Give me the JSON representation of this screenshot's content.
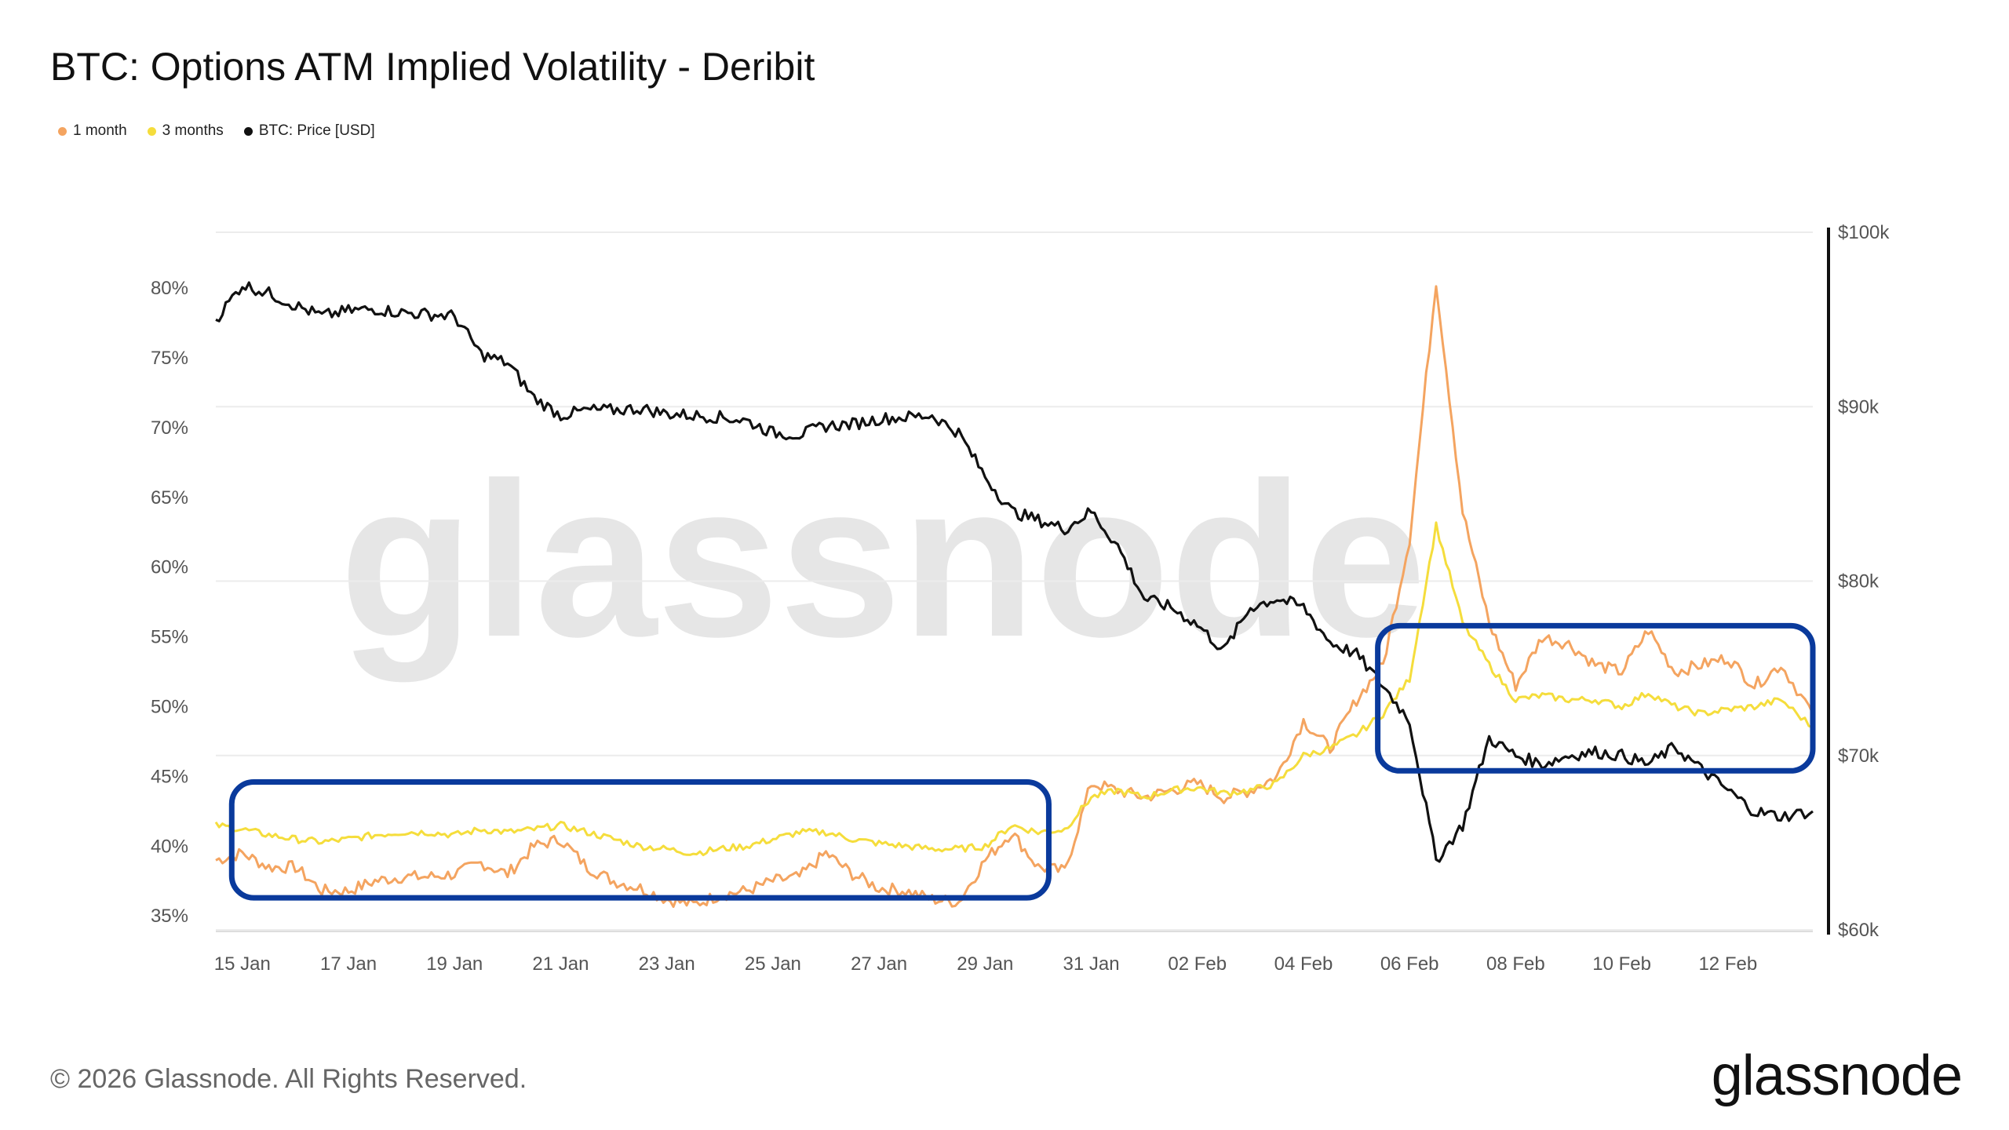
{
  "header": {
    "title": "BTC: Options ATM Implied Volatility - Deribit"
  },
  "legend": [
    {
      "label": "1 month",
      "color": "#f4a460"
    },
    {
      "label": "3 months",
      "color": "#f5dd3c"
    },
    {
      "label": "BTC: Price [USD]",
      "color": "#111111"
    }
  ],
  "watermark": "glassnode",
  "footer": {
    "copyright": "© 2026 Glassnode. All Rights Reserved.",
    "logo": "glassnode"
  },
  "colors": {
    "one_month": "#f4a460",
    "three_months": "#f5dd3c",
    "price": "#111111",
    "highlight_box": "#0a3a9c"
  },
  "chart_data": {
    "type": "line",
    "x_ticks": [
      "15 Jan",
      "17 Jan",
      "19 Jan",
      "21 Jan",
      "23 Jan",
      "25 Jan",
      "27 Jan",
      "29 Jan",
      "31 Jan",
      "02 Feb",
      "04 Feb",
      "06 Feb",
      "08 Feb",
      "10 Feb",
      "12 Feb"
    ],
    "x_range_days": [
      14.5,
      44.6
    ],
    "y_left_ticks": [
      "35%",
      "40%",
      "45%",
      "50%",
      "55%",
      "60%",
      "65%",
      "70%",
      "75%",
      "80%"
    ],
    "y_left_range": [
      34,
      84
    ],
    "y_right_ticks": [
      "$60k",
      "$70k",
      "$80k",
      "$90k",
      "$100k"
    ],
    "y_right_range": [
      60000,
      100000
    ],
    "series": [
      {
        "name": "1 month",
        "axis": "left",
        "x": [
          14.5,
          15.0,
          15.5,
          16.0,
          16.5,
          17.0,
          17.5,
          18.0,
          18.5,
          19.0,
          19.5,
          20.0,
          20.5,
          21.0,
          21.5,
          22.0,
          22.5,
          23.0,
          23.5,
          24.0,
          24.5,
          25.0,
          25.5,
          26.0,
          26.5,
          27.0,
          27.5,
          28.0,
          28.5,
          29.0,
          29.5,
          30.0,
          30.5,
          31.0,
          31.5,
          32.0,
          32.5,
          33.0,
          33.5,
          34.0,
          34.5,
          35.0,
          35.5,
          36.0,
          36.5,
          37.0,
          37.5,
          38.0,
          38.5,
          39.0,
          39.5,
          40.0,
          40.5,
          41.0,
          41.5,
          42.0,
          42.5,
          43.0,
          43.5,
          44.0,
          44.6
        ],
        "y": [
          39.0,
          39.5,
          38.5,
          38.5,
          36.8,
          36.8,
          37.5,
          37.8,
          37.8,
          38.0,
          38.8,
          38.0,
          40.0,
          40.5,
          38.5,
          37.5,
          37.0,
          36.2,
          35.8,
          36.5,
          36.8,
          37.5,
          37.8,
          39.5,
          38.0,
          37.0,
          36.8,
          36.2,
          36.0,
          39.0,
          41.0,
          38.5,
          38.2,
          44.5,
          44.0,
          43.5,
          44.0,
          44.5,
          43.5,
          44.0,
          45.0,
          49.0,
          47.0,
          50.5,
          53.0,
          62.0,
          80.5,
          64.0,
          56.0,
          51.5,
          55.0,
          54.5,
          53.0,
          52.5,
          55.5,
          52.5,
          53.0,
          53.5,
          51.5,
          53.0,
          49.5
        ]
      },
      {
        "name": "3 months",
        "axis": "left",
        "x": [
          14.5,
          15.0,
          15.5,
          16.0,
          16.5,
          17.0,
          17.5,
          18.0,
          18.5,
          19.0,
          19.5,
          20.0,
          20.5,
          21.0,
          21.5,
          22.0,
          22.5,
          23.0,
          23.5,
          24.0,
          24.5,
          25.0,
          25.5,
          26.0,
          26.5,
          27.0,
          27.5,
          28.0,
          28.5,
          29.0,
          29.5,
          30.0,
          30.5,
          31.0,
          31.5,
          32.0,
          32.5,
          33.0,
          33.5,
          34.0,
          34.5,
          35.0,
          35.5,
          36.0,
          36.5,
          37.0,
          37.5,
          38.0,
          38.5,
          39.0,
          39.5,
          40.0,
          40.5,
          41.0,
          41.5,
          42.0,
          42.5,
          43.0,
          43.5,
          44.0,
          44.6
        ],
        "y": [
          41.5,
          41.2,
          40.8,
          40.5,
          40.3,
          40.5,
          40.8,
          41.0,
          41.0,
          40.8,
          41.2,
          41.0,
          41.2,
          41.5,
          41.0,
          40.5,
          40.0,
          39.8,
          39.5,
          39.8,
          40.0,
          40.5,
          41.0,
          41.0,
          40.5,
          40.2,
          40.0,
          39.8,
          39.8,
          40.0,
          41.5,
          41.0,
          41.2,
          43.5,
          44.0,
          43.5,
          44.0,
          44.2,
          43.8,
          44.0,
          44.5,
          46.5,
          47.0,
          48.0,
          49.5,
          52.0,
          63.0,
          56.0,
          53.0,
          50.5,
          50.8,
          50.5,
          50.5,
          50.0,
          51.0,
          50.0,
          49.5,
          49.8,
          50.0,
          50.5,
          48.5
        ]
      },
      {
        "name": "BTC: Price [USD]",
        "axis": "right",
        "x": [
          14.5,
          15.0,
          15.5,
          16.0,
          16.5,
          17.0,
          17.5,
          18.0,
          18.5,
          19.0,
          19.5,
          20.0,
          20.5,
          21.0,
          21.5,
          22.0,
          22.5,
          23.0,
          23.5,
          24.0,
          24.5,
          25.0,
          25.5,
          26.0,
          26.5,
          27.0,
          27.5,
          28.0,
          28.5,
          29.0,
          29.5,
          30.0,
          30.5,
          31.0,
          31.5,
          32.0,
          32.5,
          33.0,
          33.5,
          34.0,
          34.5,
          35.0,
          35.5,
          36.0,
          36.5,
          37.0,
          37.5,
          38.0,
          38.5,
          39.0,
          39.5,
          40.0,
          40.5,
          41.0,
          41.5,
          42.0,
          42.5,
          43.0,
          43.5,
          44.0,
          44.6
        ],
        "y": [
          95000,
          97000,
          96500,
          95800,
          95200,
          95500,
          95600,
          95400,
          95300,
          95200,
          93000,
          92500,
          90500,
          89500,
          89800,
          89800,
          89900,
          89600,
          89500,
          89400,
          89200,
          88500,
          88400,
          88900,
          89000,
          89300,
          89400,
          89500,
          88500,
          86000,
          84000,
          83500,
          83000,
          84000,
          82000,
          79000,
          78500,
          77500,
          76000,
          78500,
          79000,
          78500,
          76500,
          75800,
          74000,
          72000,
          64000,
          66000,
          71000,
          70000,
          69500,
          70000,
          70200,
          70000,
          69500,
          70500,
          69200,
          68000,
          66800,
          66500,
          66800
        ]
      }
    ],
    "highlights": [
      {
        "x_range": [
          14.8,
          30.2
        ],
        "y_range": [
          36.3,
          44.6
        ],
        "color": "#0a3a9c"
      },
      {
        "x_range": [
          36.4,
          44.6
        ],
        "y_range": [
          45.4,
          55.8
        ],
        "color": "#0a3a9c"
      }
    ]
  }
}
